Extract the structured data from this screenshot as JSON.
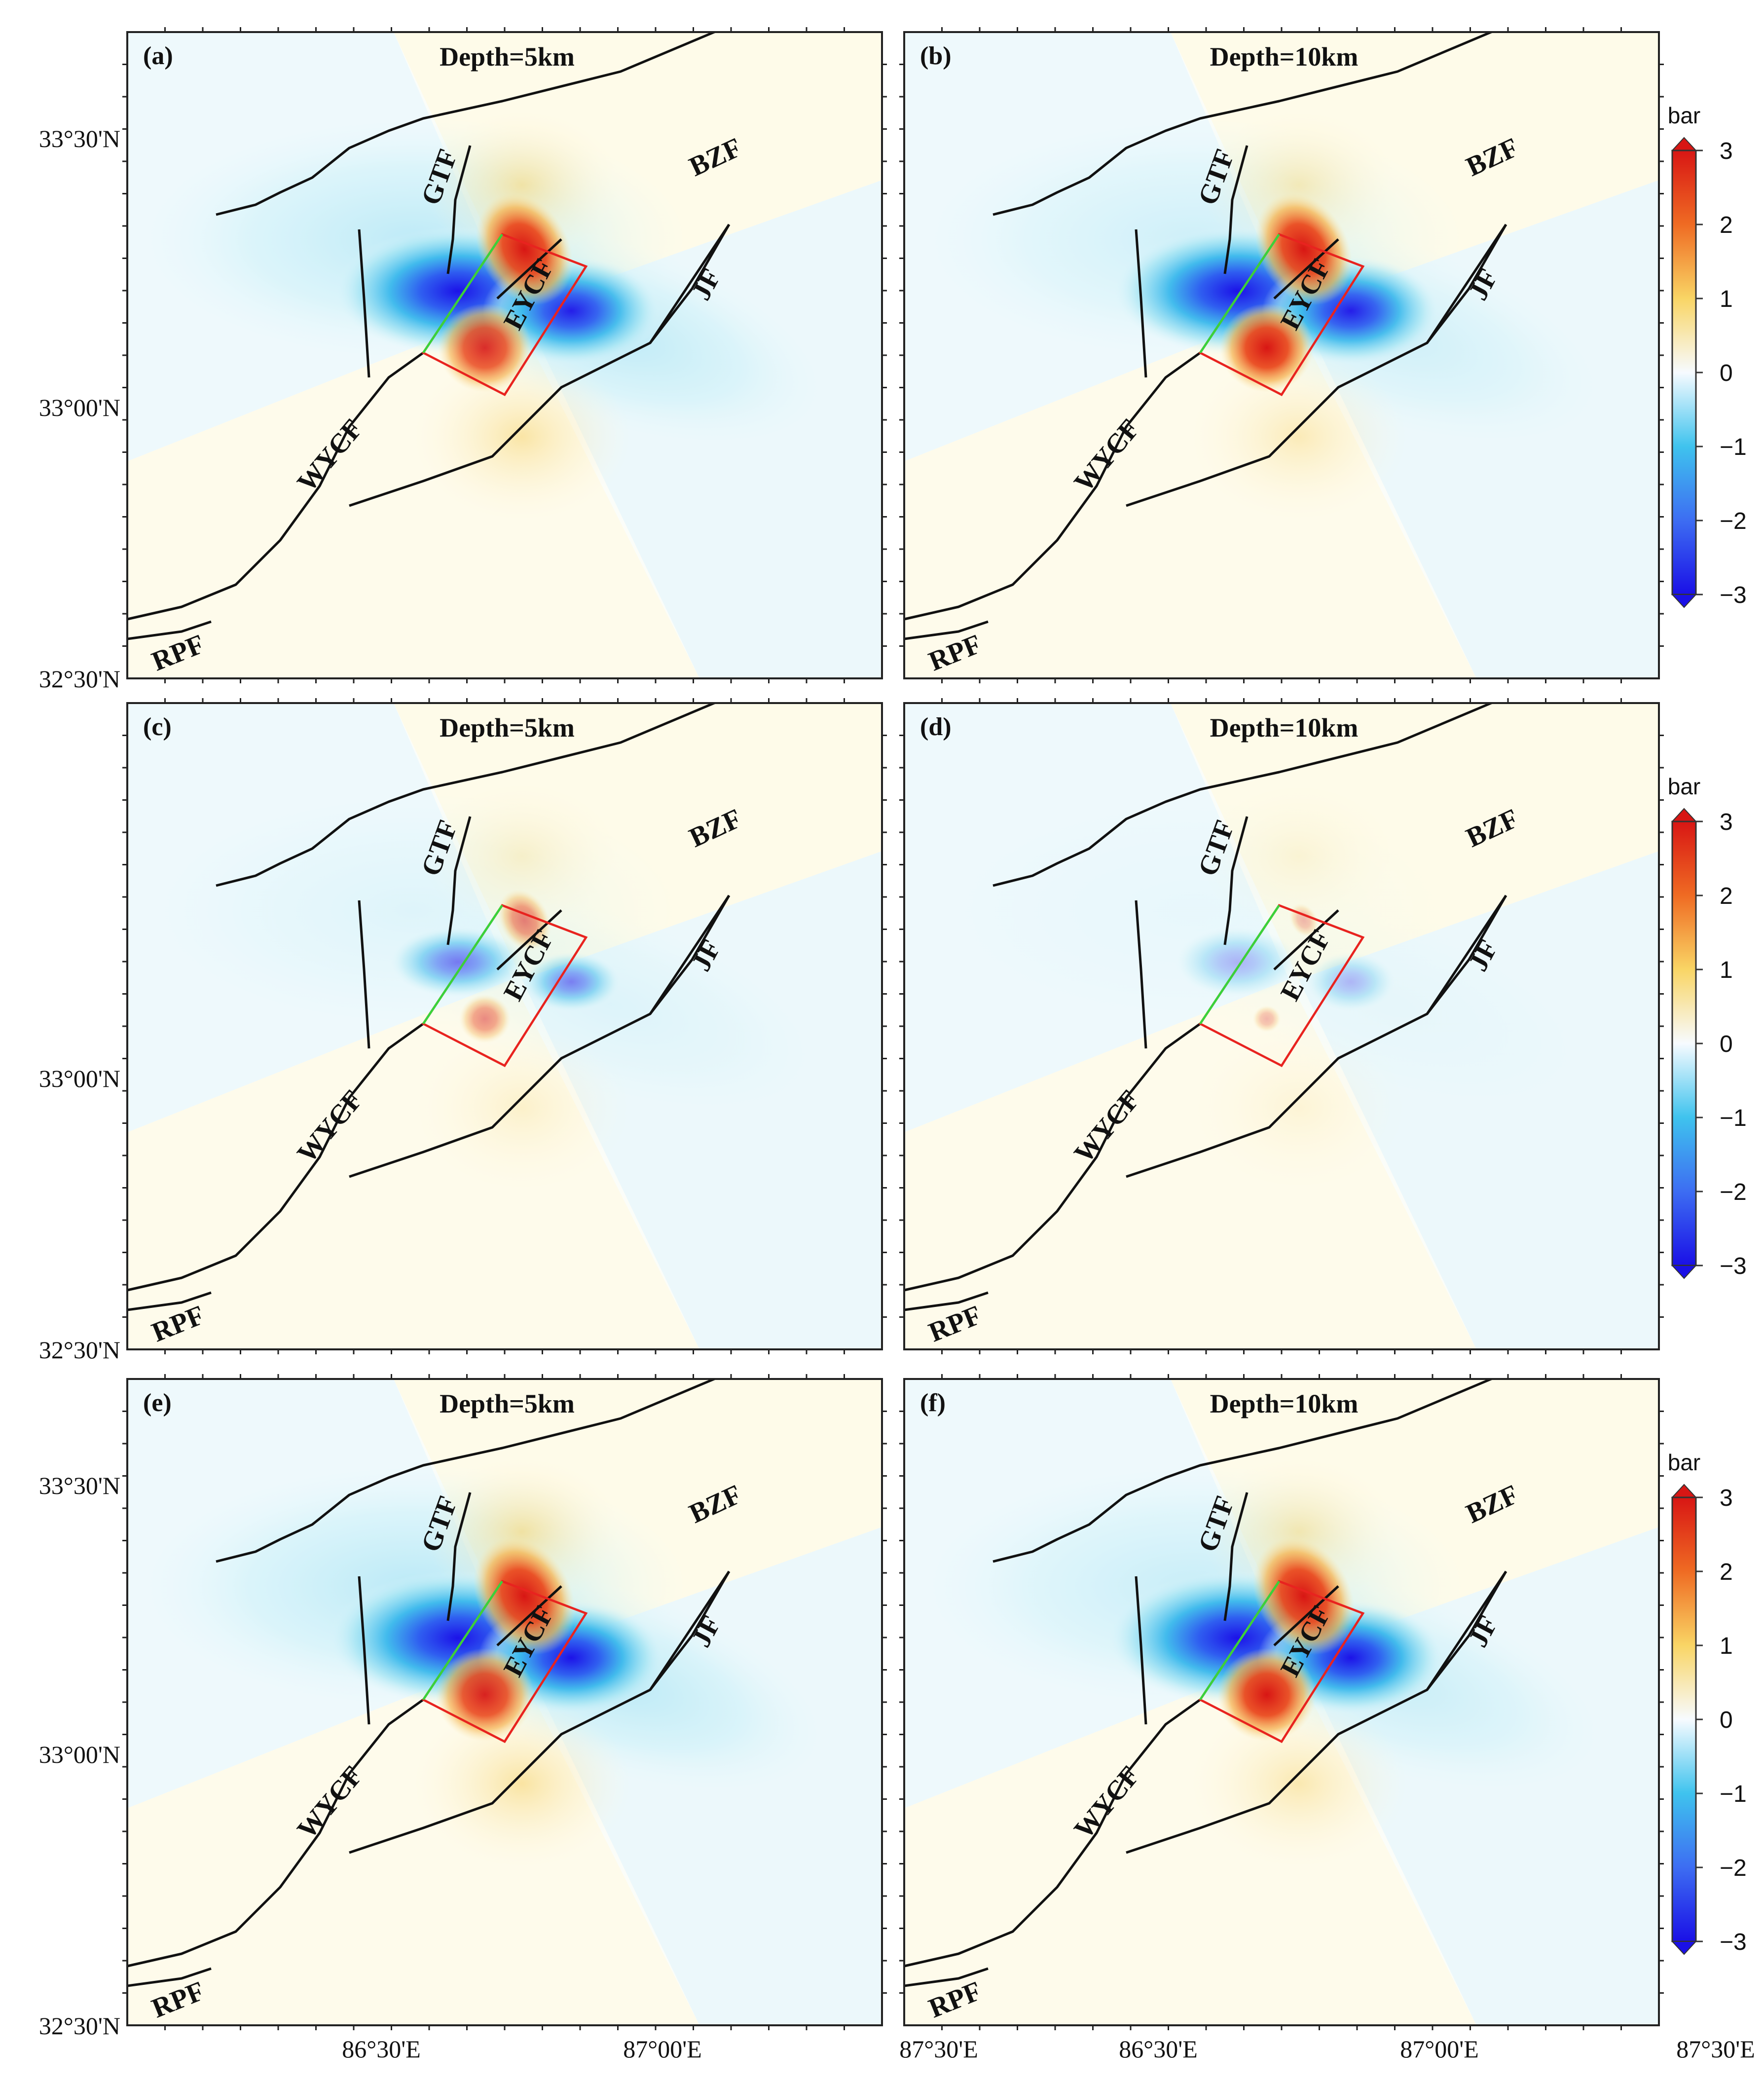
{
  "panels": [
    {
      "letter": "(a)",
      "title": "Depth=5km",
      "intensity": 1.0,
      "rim": 0.75,
      "depth_shape": 0
    },
    {
      "letter": "(b)",
      "title": "Depth=10km",
      "intensity": 1.0,
      "rim": 0.5,
      "depth_shape": 1
    },
    {
      "letter": "(c)",
      "title": "Depth=5km",
      "intensity": 0.55,
      "rim": 0.25,
      "depth_shape": 0
    },
    {
      "letter": "(d)",
      "title": "Depth=10km",
      "intensity": 0.3,
      "rim": 0.1,
      "depth_shape": 1
    },
    {
      "letter": "(e)",
      "title": "Depth=5km",
      "intensity": 1.05,
      "rim": 0.8,
      "depth_shape": 0
    },
    {
      "letter": "(f)",
      "title": "Depth=10km",
      "intensity": 1.05,
      "rim": 0.6,
      "depth_shape": 1
    }
  ],
  "lat_labels": [
    "33°30'N",
    "33°00'N",
    "32°30'N"
  ],
  "lon_labels": [
    "86°30'E",
    "87°00'E",
    "87°30'E"
  ],
  "fault_labels": [
    "GTF",
    "BZF",
    "EYCF",
    "JF",
    "WYCF",
    "RPF"
  ],
  "colorbar": {
    "unit": "bar",
    "ticks": [
      "3",
      "2",
      "1",
      "0",
      "−1",
      "−2",
      "−3"
    ],
    "colors": [
      "#1a10e6",
      "#3d6df2",
      "#3fc3ee",
      "#f7fbff",
      "#f9d565",
      "#ef6b23",
      "#d81614"
    ]
  }
}
